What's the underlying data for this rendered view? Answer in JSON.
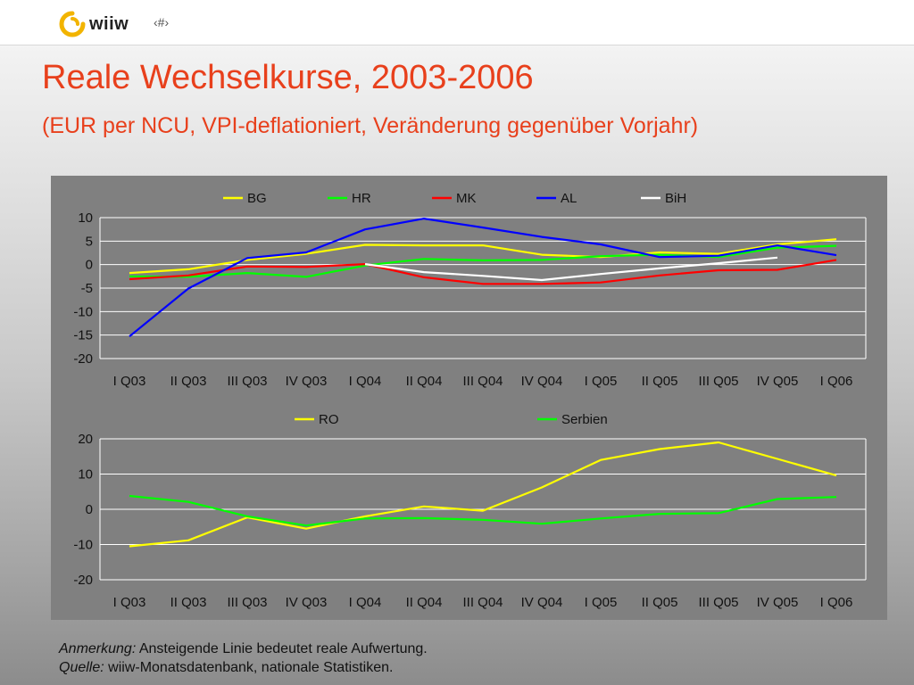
{
  "header": {
    "brand": "wiiw",
    "slide_number": "‹#›"
  },
  "title": "Reale Wechselkurse, 2003-2006",
  "subtitle": "(EUR per NCU, VPI-deflationiert, Veränderung gegenüber Vorjahr)",
  "note": {
    "label1": "Anmerkung:",
    "text1": " Ansteigende Linie bedeutet reale Aufwertung.",
    "label2": "Quelle:",
    "text2": " wiiw-Monatsdatenbank, nationale Statistiken."
  },
  "chart_data": [
    {
      "type": "line",
      "categories": [
        "I Q03",
        "II Q03",
        "III Q03",
        "IV Q03",
        "I Q04",
        "II Q04",
        "III Q04",
        "IV Q04",
        "I Q05",
        "II Q05",
        "III Q05",
        "IV Q05",
        "I Q06"
      ],
      "ylim": [
        -20,
        10
      ],
      "yticks": [
        10,
        5,
        0,
        -5,
        -10,
        -15,
        -20
      ],
      "grid": true,
      "legend": "top",
      "series": [
        {
          "name": "BG",
          "color": "#ffff00",
          "values": [
            -1.8,
            -1.0,
            1.0,
            2.3,
            4.2,
            4.1,
            4.1,
            2.1,
            1.6,
            2.6,
            2.3,
            4.3,
            5.4
          ]
        },
        {
          "name": "HR",
          "color": "#00ff00",
          "values": [
            -2.5,
            -2.6,
            -1.8,
            -2.6,
            -0.2,
            1.2,
            0.9,
            1.0,
            1.8,
            2.1,
            1.6,
            3.6,
            4.0
          ]
        },
        {
          "name": "MK",
          "color": "#ff0000",
          "values": [
            -3.1,
            -2.3,
            -0.4,
            -0.5,
            0.1,
            -2.7,
            -4.1,
            -4.1,
            -3.8,
            -2.3,
            -1.2,
            -1.1,
            1.0
          ]
        },
        {
          "name": "AL",
          "color": "#0000ff",
          "values": [
            -15.3,
            -5.1,
            1.4,
            2.6,
            7.5,
            9.8,
            7.9,
            5.9,
            4.3,
            1.6,
            1.9,
            4.1,
            2.0
          ]
        },
        {
          "name": "BiH",
          "color": "#ffffff",
          "values": [
            null,
            null,
            null,
            null,
            0.1,
            -1.6,
            -2.4,
            -3.3,
            -2.0,
            -0.8,
            0.3,
            1.5,
            null
          ]
        }
      ]
    },
    {
      "type": "line",
      "categories": [
        "I Q03",
        "II Q03",
        "III Q03",
        "IV Q03",
        "I Q04",
        "II Q04",
        "III Q04",
        "IV Q04",
        "I Q05",
        "II Q05",
        "III Q05",
        "IV Q05",
        "I Q06"
      ],
      "ylim": [
        -20,
        20
      ],
      "yticks": [
        20,
        10,
        0,
        -10,
        -20
      ],
      "grid": true,
      "legend": "top",
      "series": [
        {
          "name": "RO",
          "color": "#ffff00",
          "values": [
            -10.5,
            -8.8,
            -2.3,
            -5.5,
            -2.0,
            0.8,
            -0.4,
            6.2,
            14.0,
            17.1,
            19.0,
            14.3,
            9.6
          ]
        },
        {
          "name": "Serbien",
          "color": "#00ff00",
          "values": [
            3.8,
            2.1,
            -2.0,
            -4.6,
            -2.6,
            -2.5,
            -3.0,
            -4.1,
            -2.6,
            -1.3,
            -1.1,
            2.9,
            3.5
          ]
        }
      ]
    }
  ]
}
